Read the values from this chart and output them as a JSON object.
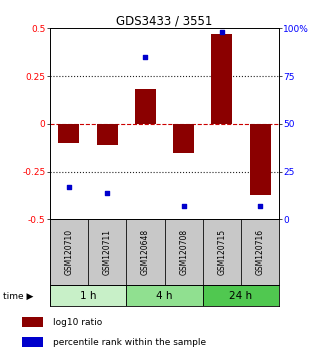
{
  "title": "GDS3433 / 3551",
  "samples": [
    "GSM120710",
    "GSM120711",
    "GSM120648",
    "GSM120708",
    "GSM120715",
    "GSM120716"
  ],
  "log10_ratio": [
    -0.1,
    -0.11,
    0.18,
    -0.15,
    0.47,
    -0.37
  ],
  "percentile_rank": [
    17,
    14,
    85,
    7,
    98,
    7
  ],
  "time_groups": [
    {
      "label": "1 h",
      "start": 0,
      "end": 2,
      "color": "#c8f0c8"
    },
    {
      "label": "4 h",
      "start": 2,
      "end": 4,
      "color": "#90e090"
    },
    {
      "label": "24 h",
      "start": 4,
      "end": 6,
      "color": "#50c850"
    }
  ],
  "bar_color": "#8b0000",
  "dot_color": "#0000cc",
  "ylim_left": [
    -0.5,
    0.5
  ],
  "ylim_right": [
    0,
    100
  ],
  "yticks_left": [
    -0.5,
    -0.25,
    0,
    0.25,
    0.5
  ],
  "yticks_right": [
    0,
    25,
    50,
    75,
    100
  ],
  "ytick_labels_left": [
    "-0.5",
    "-0.25",
    "0",
    "0.25",
    "0.5"
  ],
  "ytick_labels_right": [
    "0",
    "25",
    "50",
    "75",
    "100%"
  ],
  "zero_line_color": "#cc0000",
  "dotted_color": "#222222",
  "sample_box_color": "#c8c8c8",
  "legend_bar_label": "log10 ratio",
  "legend_dot_label": "percentile rank within the sample",
  "bar_width": 0.55,
  "bg_color": "#ffffff"
}
